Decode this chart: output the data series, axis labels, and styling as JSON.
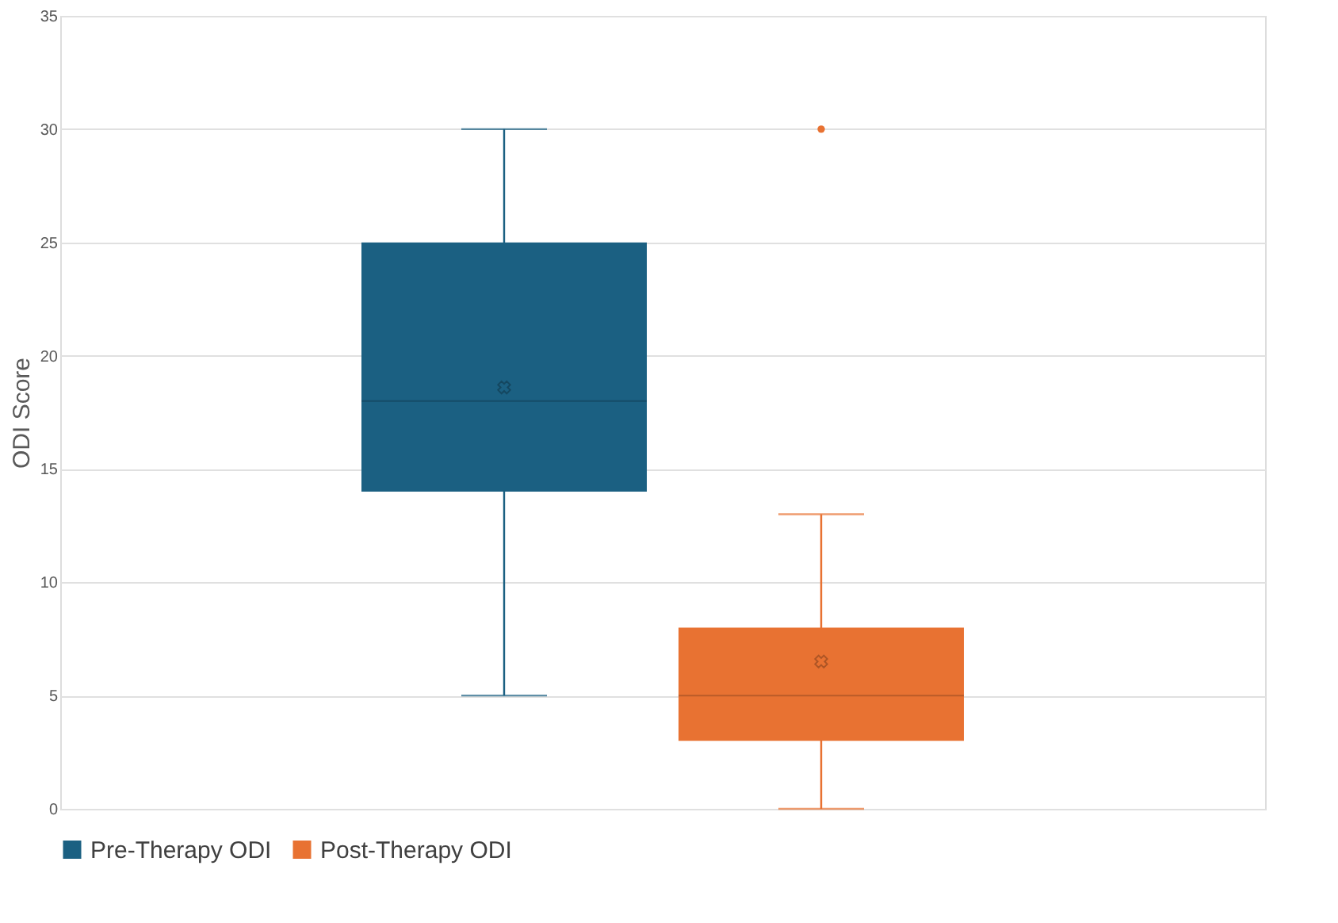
{
  "chart_data": {
    "type": "box",
    "ylabel": "ODI Score",
    "categories": [
      null
    ],
    "series": [
      {
        "name": "Pre-Therapy ODI",
        "color": "#1b6082",
        "boxes": [
          {
            "low": 5,
            "q1": 14,
            "median": 18,
            "q3": 25,
            "high": 30,
            "mean": 18.6
          }
        ]
      },
      {
        "name": "Post-Therapy ODI",
        "color": "#e87232",
        "boxes": [
          {
            "low": 0,
            "q1": 3,
            "median": 5,
            "q3": 8,
            "high": 13,
            "mean": 6.5,
            "outliers": [
              30
            ]
          }
        ]
      }
    ],
    "ylim": [
      0,
      35
    ],
    "yticks": [
      0,
      5,
      10,
      15,
      20,
      25,
      30,
      35
    ],
    "grid": "y",
    "legend": "bottom",
    "marker": "cross"
  }
}
